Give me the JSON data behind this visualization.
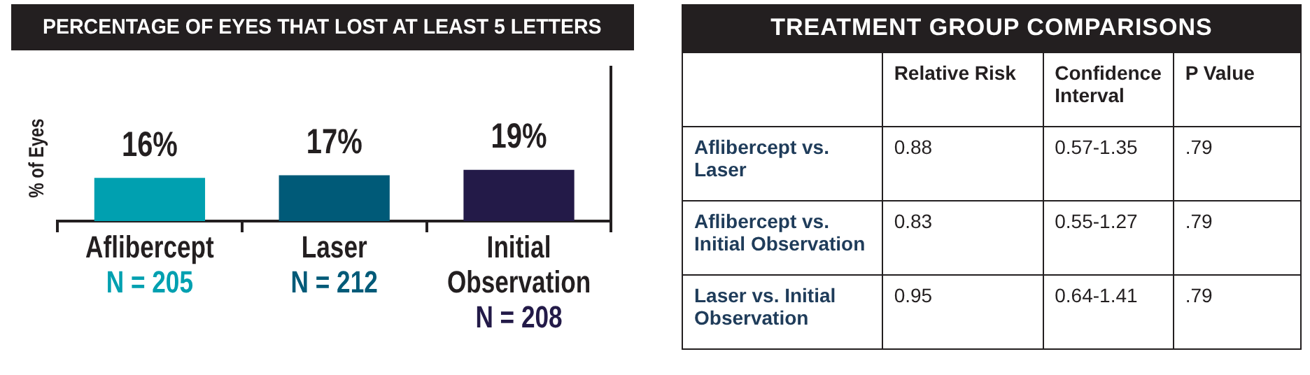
{
  "chart_data": [
    {
      "type": "bar",
      "title": "PERCENTAGE OF EYES THAT LOST AT LEAST 5 LETTERS",
      "ylabel": "% of Eyes",
      "categories": [
        "Aflibercept\nN = 205",
        "Laser\nN = 212",
        "Initial\nObservation\nN = 208"
      ],
      "values": [
        16,
        17,
        19
      ],
      "colors": [
        "#00a0b0",
        "#005a78",
        "#231a48"
      ],
      "value_labels": [
        "16%",
        "17%",
        "19%"
      ]
    },
    {
      "type": "other",
      "title": "TREATMENT GROUP COMPARISONS",
      "categories": [
        null,
        "Relative Risk",
        "Confidence Interval",
        "P Value"
      ],
      "y_categories": [
        "Aflibercept vs. Laser",
        "Aflibercept vs. Initial Observation",
        "Laser vs. Initial Observation"
      ],
      "cell_labels": [
        [
          "0.88",
          "0.57-1.35",
          ".79"
        ],
        [
          "0.83",
          "0.55-1.27",
          ".79"
        ],
        [
          "0.95",
          "0.64-1.41",
          ".79"
        ]
      ]
    }
  ]
}
